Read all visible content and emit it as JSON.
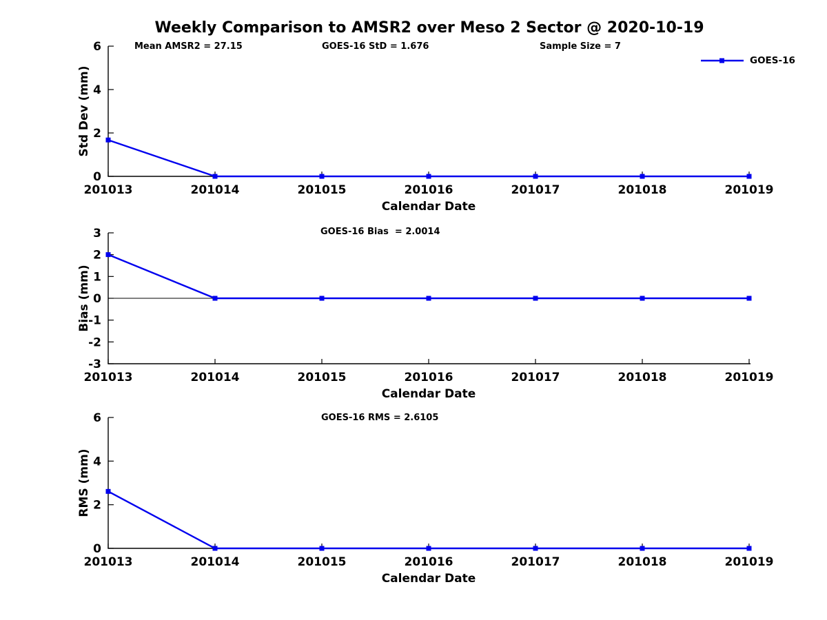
{
  "title": "Weekly Comparison to AMSR2 over Meso 2 Sector @ 2020-10-19",
  "legend": {
    "label": "GOES-16"
  },
  "colors": {
    "series_blue": "#0000EE",
    "axis_black": "#000000",
    "background": "#FFFFFF"
  },
  "chart_data": [
    {
      "type": "line",
      "name": "std-dev",
      "title": "",
      "xlabel": "Calendar Date",
      "ylabel": "Std Dev (mm)",
      "categories": [
        "201013",
        "201014",
        "201015",
        "201016",
        "201017",
        "201018",
        "201019"
      ],
      "series": [
        {
          "name": "GOES-16",
          "values": [
            1.676,
            0,
            0,
            0,
            0,
            0,
            0
          ]
        }
      ],
      "ylim": [
        0,
        6
      ],
      "yticks": [
        0,
        2,
        4,
        6
      ],
      "grid": false,
      "zero_line": false,
      "legend_position": "top-right",
      "annotations": [
        "Mean AMSR2 = 27.15",
        "GOES-16 StD = 1.676",
        "Sample Size = 7"
      ]
    },
    {
      "type": "line",
      "name": "bias",
      "title": "",
      "xlabel": "Calendar Date",
      "ylabel": "Bias (mm)",
      "categories": [
        "201013",
        "201014",
        "201015",
        "201016",
        "201017",
        "201018",
        "201019"
      ],
      "series": [
        {
          "name": "GOES-16",
          "values": [
            2.0014,
            0,
            0,
            0,
            0,
            0,
            0
          ]
        }
      ],
      "ylim": [
        -3,
        3
      ],
      "yticks": [
        -3,
        -2,
        -1,
        0,
        1,
        2,
        3
      ],
      "grid": false,
      "zero_line": true,
      "annotations": [
        "GOES-16 Bias  = 2.0014"
      ]
    },
    {
      "type": "line",
      "name": "rms",
      "title": "",
      "xlabel": "Calendar Date",
      "ylabel": "RMS (mm)",
      "categories": [
        "201013",
        "201014",
        "201015",
        "201016",
        "201017",
        "201018",
        "201019"
      ],
      "series": [
        {
          "name": "GOES-16",
          "values": [
            2.6105,
            0,
            0,
            0,
            0,
            0,
            0
          ]
        }
      ],
      "ylim": [
        0,
        6
      ],
      "yticks": [
        0,
        2,
        4,
        6
      ],
      "grid": false,
      "zero_line": false,
      "annotations": [
        "GOES-16 RMS = 2.6105"
      ]
    }
  ]
}
